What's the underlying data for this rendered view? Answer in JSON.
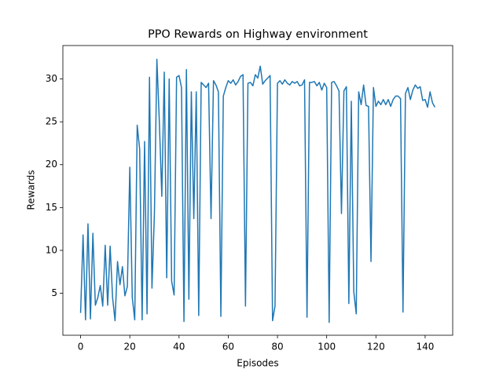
{
  "chart_data": {
    "type": "line",
    "title": "PPO Rewards on Highway environment",
    "x_label": "Episodes",
    "y_label": "Rewards",
    "x": [
      0,
      1,
      2,
      3,
      4,
      5,
      6,
      7,
      8,
      9,
      10,
      11,
      12,
      13,
      14,
      15,
      16,
      17,
      18,
      19,
      20,
      21,
      22,
      23,
      24,
      25,
      26,
      27,
      28,
      29,
      30,
      31,
      32,
      33,
      34,
      35,
      36,
      37,
      38,
      39,
      40,
      41,
      42,
      43,
      44,
      45,
      46,
      47,
      48,
      49,
      50,
      51,
      52,
      53,
      54,
      55,
      56,
      57,
      58,
      59,
      60,
      61,
      62,
      63,
      64,
      65,
      66,
      67,
      68,
      69,
      70,
      71,
      72,
      73,
      74,
      75,
      76,
      77,
      78,
      79,
      80,
      81,
      82,
      83,
      84,
      85,
      86,
      87,
      88,
      89,
      90,
      91,
      92,
      93,
      94,
      95,
      96,
      97,
      98,
      99,
      100,
      101,
      102,
      103,
      104,
      105,
      106,
      107,
      108,
      109,
      110,
      111,
      112,
      113,
      114,
      115,
      116,
      117,
      118,
      119,
      120,
      121,
      122,
      123,
      124,
      125,
      126,
      127,
      128,
      129,
      130,
      131,
      132,
      133,
      134,
      135,
      136,
      137,
      138,
      139,
      140,
      141,
      142,
      143,
      144
    ],
    "series": [
      {
        "color": "#1f77b4",
        "values": [
          2.7,
          11.8,
          1.9,
          13.1,
          2.0,
          12.0,
          3.6,
          4.5,
          5.9,
          3.5,
          10.6,
          3.6,
          10.5,
          4.5,
          1.8,
          8.7,
          6.0,
          8.1,
          4.7,
          5.8,
          19.7,
          4.5,
          1.9,
          24.6,
          21.8,
          1.9,
          22.7,
          2.6,
          30.2,
          5.6,
          14.3,
          32.3,
          25.0,
          16.3,
          30.8,
          6.8,
          30.0,
          6.4,
          4.8,
          30.2,
          30.4,
          29.0,
          1.7,
          31.1,
          4.3,
          28.5,
          13.7,
          28.5,
          2.4,
          29.6,
          29.3,
          29.0,
          29.5,
          13.7,
          29.8,
          29.3,
          28.5,
          2.3,
          28.0,
          29.0,
          29.8,
          29.5,
          29.9,
          29.3,
          29.7,
          30.3,
          30.5,
          3.5,
          29.5,
          29.6,
          29.2,
          30.5,
          30.1,
          31.5,
          29.4,
          29.8,
          30.1,
          30.4,
          1.8,
          3.5,
          29.5,
          29.8,
          29.4,
          29.9,
          29.5,
          29.3,
          29.7,
          29.5,
          29.7,
          29.2,
          29.3,
          29.9,
          2.2,
          29.6,
          29.6,
          29.7,
          29.2,
          29.6,
          28.7,
          29.5,
          29.0,
          1.6,
          29.6,
          29.7,
          29.2,
          28.6,
          14.3,
          28.6,
          29.1,
          3.8,
          27.4,
          5.2,
          2.6,
          28.5,
          27.0,
          29.3,
          26.9,
          26.8,
          8.7,
          29.0,
          26.8,
          27.4,
          27.0,
          27.6,
          27.0,
          27.6,
          26.8,
          27.6,
          28.0,
          28.0,
          27.7,
          2.8,
          28.3,
          29.0,
          27.6,
          28.7,
          29.3,
          28.9,
          29.1,
          27.5,
          27.6,
          26.7,
          28.5,
          27.2,
          26.7
        ]
      }
    ],
    "xlim": [
      -7.2,
      151.2
    ],
    "xticks": [
      0,
      20,
      40,
      60,
      80,
      100,
      120,
      140
    ],
    "ylim": [
      0.1,
      33.9
    ],
    "yticks": [
      5,
      10,
      15,
      20,
      25,
      30
    ]
  }
}
